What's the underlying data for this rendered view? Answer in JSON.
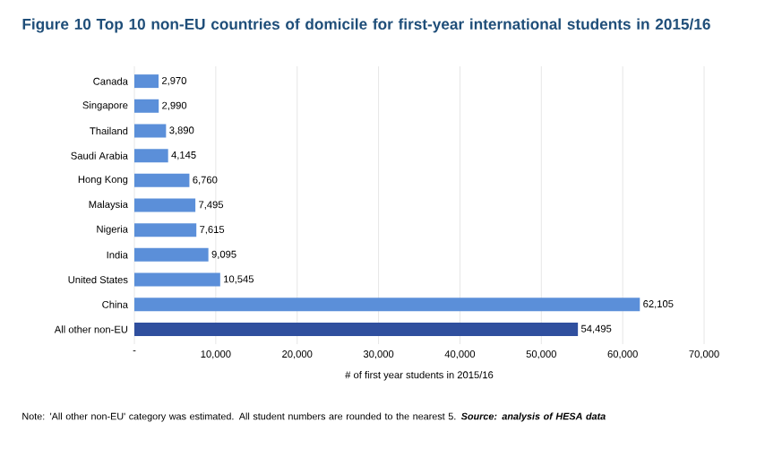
{
  "chart_data": {
    "type": "bar",
    "orientation": "horizontal",
    "title": "Figure 10    Top 10 non-EU countries of domicile for first-year international students in 2015/16",
    "categories": [
      "Canada",
      "Singapore",
      "Thailand",
      "Saudi Arabia",
      "Hong Kong",
      "Malaysia",
      "Nigeria",
      "India",
      "United States",
      "China",
      "All other non-EU"
    ],
    "values": [
      2970,
      2990,
      3890,
      4145,
      6760,
      7495,
      7615,
      9095,
      10545,
      62105,
      54495
    ],
    "value_labels": [
      "2,970",
      "2,990",
      "3,890",
      "4,145",
      "6,760",
      "7,495",
      "7,615",
      "9,095",
      "10,545",
      "62,105",
      "54,495"
    ],
    "colors": [
      "#5b8fd9",
      "#5b8fd9",
      "#5b8fd9",
      "#5b8fd9",
      "#5b8fd9",
      "#5b8fd9",
      "#5b8fd9",
      "#5b8fd9",
      "#5b8fd9",
      "#5b8fd9",
      "#2f4f9e"
    ],
    "xlabel": "# of first year students in 2015/16",
    "xlim": [
      0,
      70000
    ],
    "xticks": [
      {
        "value": 0,
        "label": "-"
      },
      {
        "value": 10000,
        "label": "10,000"
      },
      {
        "value": 20000,
        "label": "20,000"
      },
      {
        "value": 30000,
        "label": "30,000"
      },
      {
        "value": 40000,
        "label": "40,000"
      },
      {
        "value": 50000,
        "label": "50,000"
      },
      {
        "value": 60000,
        "label": "60,000"
      },
      {
        "value": 70000,
        "label": "70,000"
      }
    ],
    "grid": "x",
    "annotations": [
      "Note: 'All other non-EU' category was estimated. All student numbers are rounded to the nearest 5.",
      "Source: analysis of HESA data"
    ]
  }
}
